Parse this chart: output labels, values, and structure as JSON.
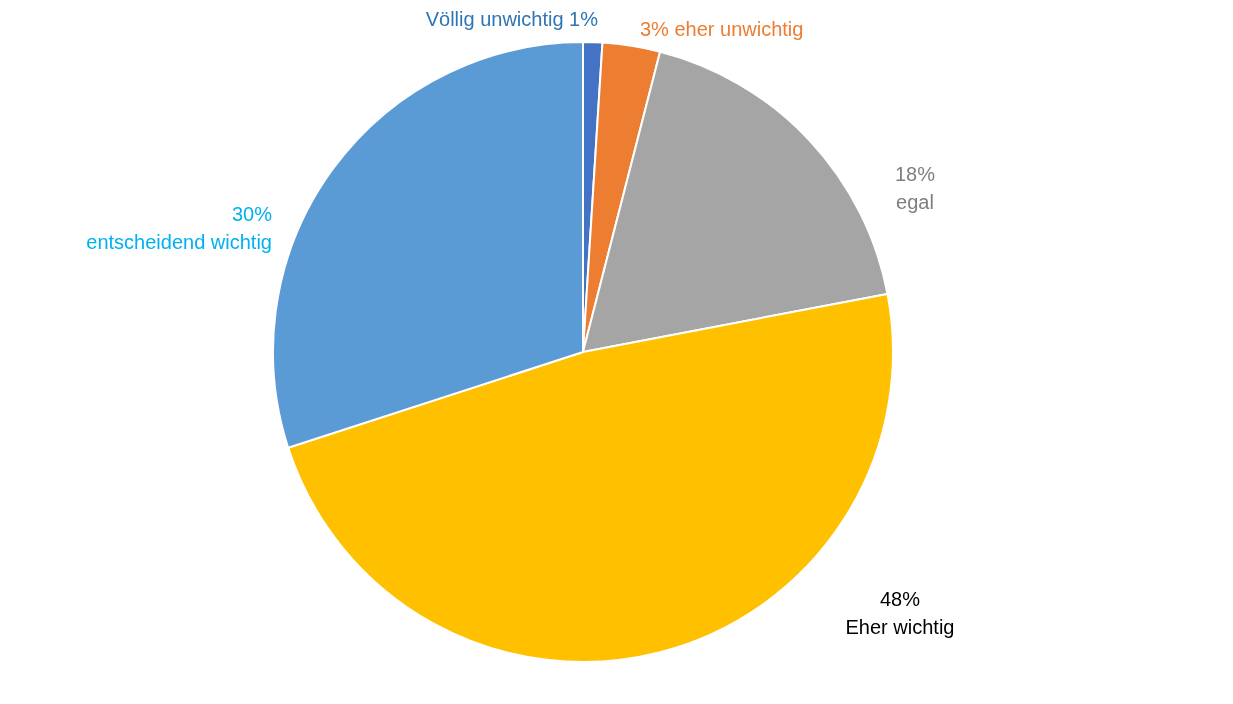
{
  "chart_data": {
    "type": "pie",
    "categories": [
      "Völlig unwichtig",
      "eher unwichtig",
      "egal",
      "Eher wichtig",
      "entscheidend wichtig"
    ],
    "values": [
      1,
      3,
      18,
      48,
      30
    ],
    "value_labels": [
      "1%",
      "3%",
      "18%",
      "48%",
      "30%"
    ],
    "colors": [
      "#4472c4",
      "#ed7d31",
      "#a5a5a5",
      "#ffc000",
      "#5b9bd5"
    ]
  }
}
